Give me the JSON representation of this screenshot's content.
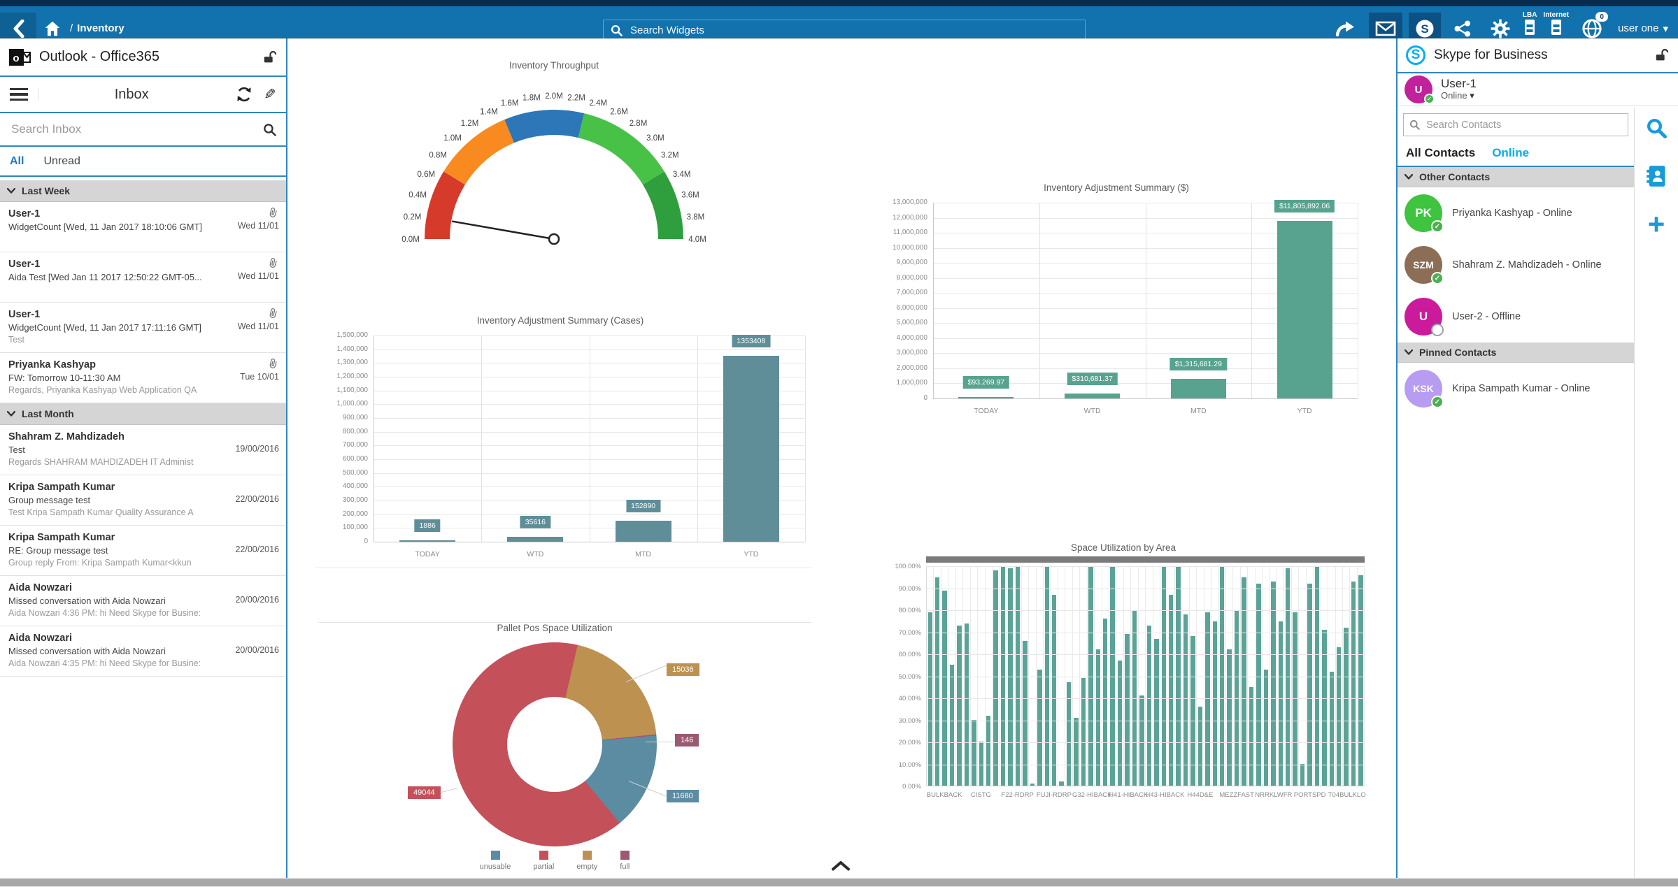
{
  "topbar": {
    "breadcrumb_section": "Inventory",
    "breadcrumb_separator": "/",
    "search_placeholder": "Search Widgets",
    "lba_label": "LBA",
    "internet_label": "Internet",
    "globe_badge": "0",
    "user_menu_label": "user one",
    "colors": {
      "bar": "#1172ad",
      "top_strip": "#0a2c4c",
      "active_icon_bg": "#0c5183"
    }
  },
  "icons": {
    "back": "chevron-left",
    "home": "house",
    "search": "magnifier",
    "forward": "curved-arrow",
    "mail": "envelope",
    "skype": "s-circle",
    "share": "share-nodes",
    "settings": "gear",
    "lba": "server-rack",
    "internet": "server-rack",
    "notifications": "globe-with-badge",
    "lock": "open-padlock",
    "refresh": "circular-arrows",
    "compose": "pencil",
    "attachment": "paperclip",
    "menu": "hamburger",
    "collapse": "chevron-up",
    "contacts": "address-book",
    "add": "plus"
  },
  "outlook": {
    "window_title": "Outlook - Office365",
    "folder_title": "Inbox",
    "search_placeholder": "Search Inbox",
    "tab_all": "All",
    "tab_unread": "Unread",
    "groups": [
      {
        "label": "Last Week",
        "emails": [
          {
            "from": "User-1",
            "subject": "WidgetCount [Wed, 11 Jan 2017 18:10:06 GMT]",
            "snippet": "",
            "date": "Wed 11/01",
            "attachment": true
          },
          {
            "from": "User-1",
            "subject": "Aida Test [Wed Jan 11 2017 12:50:22 GMT-05...",
            "snippet": "",
            "date": "Wed 11/01",
            "attachment": true
          },
          {
            "from": "User-1",
            "subject": "WidgetCount [Wed, 11 Jan 2017 17:11:16 GMT]",
            "snippet": "Test",
            "date": "Wed 11/01",
            "attachment": true
          },
          {
            "from": "Priyanka Kashyap",
            "subject": "FW: Tomorrow 10-11:30 AM",
            "snippet": "Regards, Priyanka Kashyap Web Application QA",
            "date": "Tue 10/01",
            "attachment": true
          }
        ]
      },
      {
        "label": "Last Month",
        "emails": [
          {
            "from": "Shahram Z. Mahdizadeh",
            "subject": "Test",
            "snippet": "Regards   SHAHRAM MAHDIZADEH IT Administ",
            "date": "19/00/2016",
            "attachment": false
          },
          {
            "from": "Kripa Sampath Kumar",
            "subject": "Group message test",
            "snippet": "Test   Kripa Sampath Kumar Quality Assurance A",
            "date": "22/00/2016",
            "attachment": false
          },
          {
            "from": "Kripa Sampath Kumar",
            "subject": "RE: Group message test",
            "snippet": "Group reply    From: Kripa Sampath Kumar<kkun",
            "date": "22/00/2016",
            "attachment": false
          },
          {
            "from": "Aida Nowzari",
            "subject": "Missed conversation with Aida Nowzari",
            "snippet": "Aida Nowzari 4:36 PM: hi Need Skype for Busine:",
            "date": "20/00/2016",
            "attachment": false
          },
          {
            "from": "Aida Nowzari",
            "subject": "Missed conversation with Aida Nowzari",
            "snippet": "Aida Nowzari 4:35 PM: hi Need Skype for Busine:",
            "date": "20/00/2016",
            "attachment": false
          }
        ]
      }
    ]
  },
  "skype": {
    "window_title": "Skype for Business",
    "self": {
      "name": "User-1",
      "status": "Online",
      "initials": "U",
      "avatar_color": "#c2219c"
    },
    "search_placeholder": "Search Contacts",
    "tab_all": "All Contacts",
    "tab_online": "Online",
    "groups": [
      {
        "label": "Other Contacts",
        "contacts": [
          {
            "initials": "PK",
            "name": "Priyanka Kashyap - Online",
            "avatar_color": "#3ec43e",
            "status": "online"
          },
          {
            "initials": "SZM",
            "name": "Shahram Z. Mahdizadeh - Online",
            "avatar_color": "#8c6e57",
            "status": "online"
          },
          {
            "initials": "U",
            "name": "User-2 - Offline",
            "avatar_color": "#cb1b9c",
            "status": "offline"
          }
        ]
      },
      {
        "label": "Pinned Contacts",
        "contacts": [
          {
            "initials": "KSK",
            "name": "Kripa Sampath Kumar - Online",
            "avatar_color": "#b79cf2",
            "status": "online"
          }
        ]
      }
    ]
  },
  "chart_data": [
    {
      "type": "gauge",
      "title": "Inventory Throughput",
      "min": 0,
      "max": 4,
      "unit": "M",
      "tick_step": 0.2,
      "needle_value": 0.22,
      "bands": [
        {
          "from": 0.0,
          "to": 0.7,
          "color": "#d63a2a"
        },
        {
          "from": 0.7,
          "to": 1.5,
          "color": "#f98a1f"
        },
        {
          "from": 1.5,
          "to": 2.3,
          "color": "#2d76b8"
        },
        {
          "from": 2.3,
          "to": 3.3,
          "color": "#47c146"
        },
        {
          "from": 3.3,
          "to": 4.0,
          "color": "#2f9e3d"
        }
      ]
    },
    {
      "type": "bar",
      "title": "Inventory Adjustment Summary (Cases)",
      "categories": [
        "TODAY",
        "WTD",
        "MTD",
        "YTD"
      ],
      "values": [
        1886,
        35616,
        152890,
        1353408
      ],
      "labels": [
        "1886",
        "35616",
        "152890",
        "1353408"
      ],
      "ylim": [
        0,
        1500000
      ],
      "ytick_step": 100000,
      "bar_color": "#5f8e99",
      "grid": true,
      "legend_position": "none"
    },
    {
      "type": "bar",
      "title": "Inventory Adjustment Summary ($)",
      "categories": [
        "TODAY",
        "WTD",
        "MTD",
        "YTD"
      ],
      "values": [
        93269.97,
        310681.37,
        1315681.29,
        11805892.06
      ],
      "labels": [
        "$93,269.97",
        "$310,681.37",
        "$1,315,681.29",
        "$11,805,892.06"
      ],
      "ylim": [
        0,
        13000000
      ],
      "ytick_step": 1000000,
      "bar_color": "#57a38f",
      "grid": true,
      "legend_position": "none"
    },
    {
      "type": "pie",
      "title": "Pallet Pos Space Utilization",
      "donut": true,
      "slices": [
        {
          "label": "unusable",
          "value": 11680,
          "color": "#5b8ca2"
        },
        {
          "label": "partial",
          "value": 49044,
          "color": "#c4505a"
        },
        {
          "label": "empty",
          "value": 15036,
          "color": "#bd9150"
        },
        {
          "label": "full",
          "value": 146,
          "color": "#9c5a72"
        }
      ],
      "draw_order": [
        "empty",
        "full",
        "unusable",
        "partial"
      ],
      "start_angle_deg": 13,
      "legend_position": "bottom"
    },
    {
      "type": "bar",
      "title": "Space Utilization by Area",
      "group_labels": [
        "BULKBACK",
        "CISTG",
        "F22-RDRP",
        "FUJI-RDRP",
        "G32-HIBACK",
        "H41-HIBACK",
        "H43-HIBACK",
        "H44D&E",
        "MEZZFAST",
        "NRRKLWFR",
        "PORTSPD",
        "T04BULKLO"
      ],
      "values": [
        79,
        95,
        89,
        55,
        73,
        74,
        30,
        20,
        32,
        98,
        100,
        99,
        100,
        66,
        1,
        53,
        100,
        87,
        2,
        47,
        31,
        49,
        100,
        62,
        76,
        100,
        57,
        69,
        80,
        41,
        73,
        67,
        100,
        87,
        100,
        78,
        68,
        36,
        79,
        75,
        100,
        62,
        80,
        95,
        45,
        92,
        53,
        93,
        75,
        99,
        79,
        10,
        92,
        100,
        71,
        52,
        63,
        72,
        93,
        96
      ],
      "ylim": [
        0,
        100
      ],
      "ytick_step": 10,
      "ytick_format": "percent2",
      "bar_color": "#5aa396",
      "grid": true,
      "has_range_scrollbar": true
    }
  ],
  "footer": {
    "collapse_hint": "collapse-dashboard"
  }
}
